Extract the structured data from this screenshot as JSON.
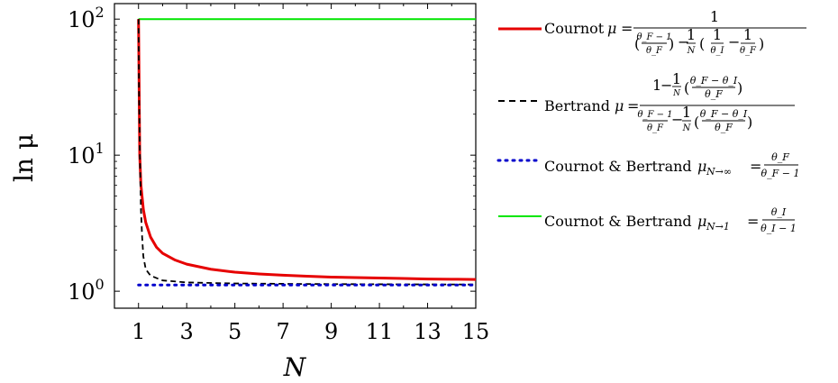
{
  "chart_data": {
    "type": "line",
    "xlabel": "N",
    "ylabel": "ln μ",
    "xlim": [
      0,
      15
    ],
    "ylim": [
      0.75,
      130
    ],
    "yscale": "log",
    "xticks": [
      1,
      3,
      5,
      7,
      9,
      11,
      13,
      15
    ],
    "yticks": [
      {
        "value": 1,
        "base": "10",
        "exp": "0"
      },
      {
        "value": 10,
        "base": "10",
        "exp": "1"
      },
      {
        "value": 100,
        "base": "10",
        "exp": "2"
      }
    ],
    "grid": false,
    "legend_position": "right",
    "series": [
      {
        "name": "Cournot",
        "color": "#e60000",
        "style": "solid",
        "x": [
          1,
          1.05,
          1.1,
          1.2,
          1.3,
          1.5,
          1.75,
          2,
          2.5,
          3,
          4,
          5,
          6,
          7,
          8,
          9,
          10,
          11,
          12,
          13,
          14,
          15
        ],
        "y": [
          100,
          10,
          6,
          4,
          3.2,
          2.5,
          2.1,
          1.9,
          1.7,
          1.58,
          1.45,
          1.38,
          1.34,
          1.31,
          1.29,
          1.27,
          1.26,
          1.25,
          1.24,
          1.23,
          1.225,
          1.22
        ]
      },
      {
        "name": "Bertrand",
        "color": "#000000",
        "style": "dashed",
        "x": [
          1,
          1.02,
          1.05,
          1.08,
          1.1,
          1.15,
          1.2,
          1.3,
          1.5,
          2,
          3,
          5,
          8,
          11,
          15
        ],
        "y": [
          100,
          30,
          12,
          6,
          4,
          2.5,
          1.8,
          1.45,
          1.3,
          1.2,
          1.16,
          1.14,
          1.13,
          1.125,
          1.12
        ]
      },
      {
        "name": "Cournot & Bertrand N→∞",
        "color": "#0000cc",
        "style": "dotted",
        "x": [
          1,
          15
        ],
        "y": [
          1.11,
          1.11
        ]
      },
      {
        "name": "Cournot & Bertrand N→1",
        "color": "#00e600",
        "style": "solid",
        "x": [
          1,
          15
        ],
        "y": [
          100,
          100
        ]
      }
    ],
    "legend": {
      "cournot": {
        "lead": "Cournot",
        "mu": "μ",
        "eq": "=",
        "num": "1",
        "den_a_num": "θ_F − 1",
        "den_a_den": "θ_F",
        "minus": "−",
        "den_b_num": "1",
        "den_b_den": "N",
        "den_c_1n": "1",
        "den_c_1d": "θ_I",
        "den_c_2n": "1",
        "den_c_2d": "θ_F"
      },
      "bertrand": {
        "lead": "Bertrand",
        "mu": "μ",
        "eq": "=",
        "num_one": "1",
        "num_frac_n": "1",
        "num_frac_d": "N",
        "num_paren_n": "θ_F − θ_I",
        "num_paren_d": "θ_F",
        "den_a_n": "θ_F − 1",
        "den_a_d": "θ_F",
        "den_b_n": "1",
        "den_b_d": "N",
        "den_paren_n": "θ_F − θ_I",
        "den_paren_d": "θ_F"
      },
      "inf": {
        "lead": "Cournot & Bertrand",
        "mu": "μ",
        "sub": "N→∞",
        "eq": "=",
        "num": "θ_F",
        "den": "θ_F − 1"
      },
      "one": {
        "lead": "Cournot & Bertrand",
        "mu": "μ",
        "sub": "N→1",
        "eq": "=",
        "num": "θ_I",
        "den": "θ_I − 1"
      }
    }
  }
}
